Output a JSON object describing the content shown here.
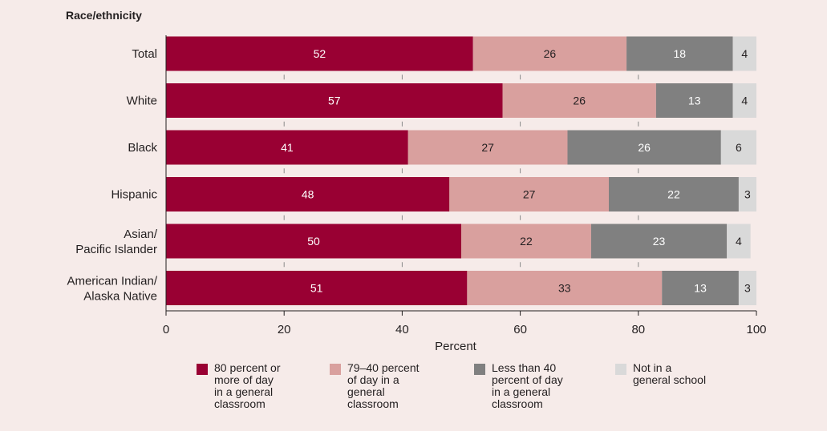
{
  "chart_data": {
    "type": "bar",
    "orientation": "horizontal",
    "stacked": true,
    "ytitle": "Race/ethnicity",
    "xlabel": "Percent",
    "xlim": [
      0,
      100
    ],
    "xticks": [
      0,
      20,
      40,
      60,
      80,
      100
    ],
    "grid": false,
    "legend_position": "bottom",
    "categories": [
      "Total",
      "White",
      "Black",
      "Hispanic",
      "Asian/\nPacific Islander",
      "American Indian/\nAlaska Native"
    ],
    "series": [
      {
        "name": "80 percent or\nmore of day\nin a general\nclassroom",
        "color": "#990033",
        "label_color": "#ffffff",
        "values": [
          52,
          57,
          41,
          48,
          50,
          51
        ]
      },
      {
        "name": "79–40 percent\nof day in a\ngeneral\nclassroom",
        "color": "#d9a09e",
        "label_color": "#231f20",
        "values": [
          26,
          26,
          27,
          27,
          22,
          33
        ]
      },
      {
        "name": "Less than 40\npercent of day\nin a general\nclassroom",
        "color": "#808080",
        "label_color": "#ffffff",
        "values": [
          18,
          13,
          26,
          22,
          23,
          13
        ]
      },
      {
        "name": "Not in a\ngeneral school",
        "color": "#d9d9d9",
        "label_color": "#231f20",
        "values": [
          4,
          4,
          6,
          3,
          4,
          3
        ]
      }
    ]
  }
}
